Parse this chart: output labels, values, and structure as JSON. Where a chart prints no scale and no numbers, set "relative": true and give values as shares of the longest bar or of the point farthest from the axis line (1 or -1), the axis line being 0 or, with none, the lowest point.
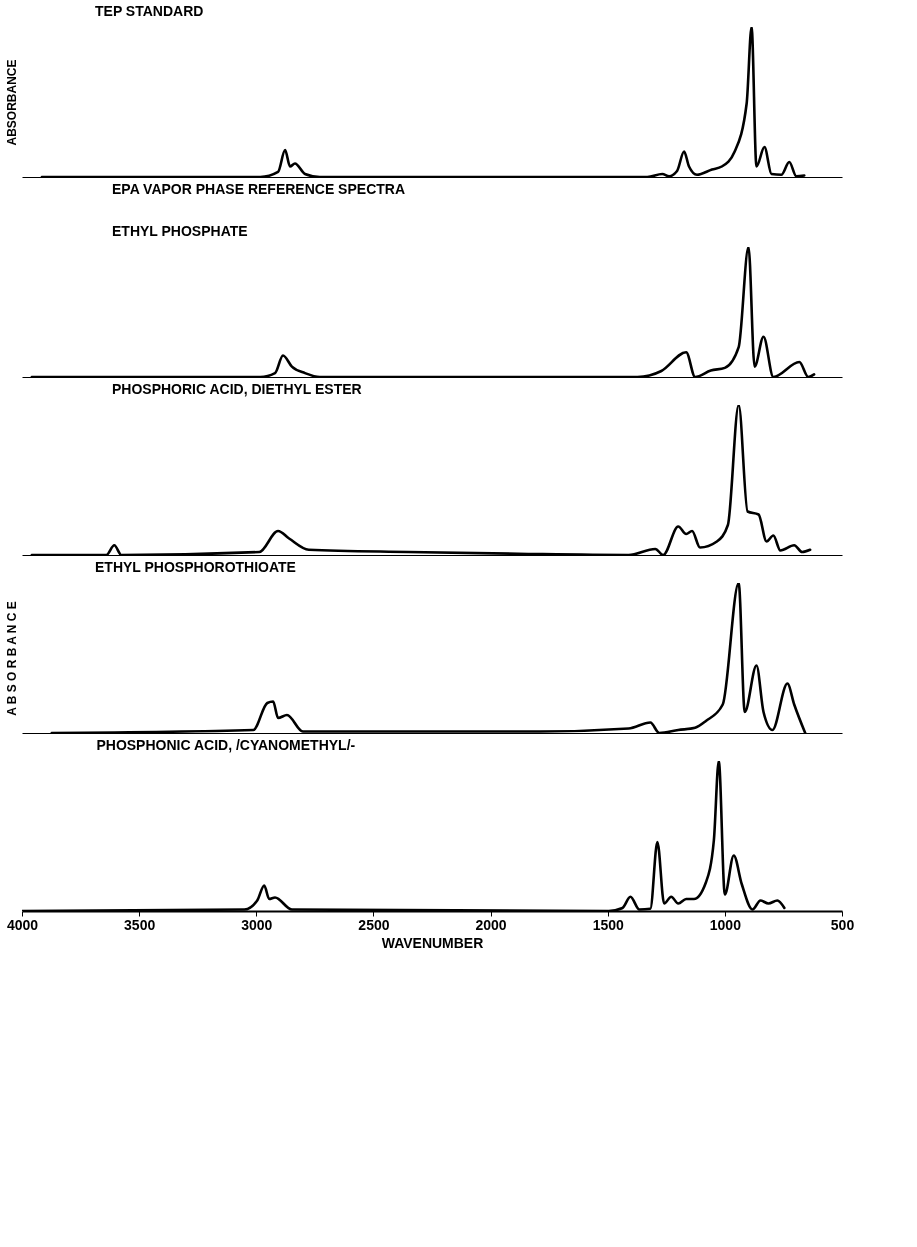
{
  "chart_data": [
    {
      "type": "line",
      "title": "TEP STANDARD",
      "ylabel": "ABSORBANCE",
      "relative": true,
      "xlim": [
        4000,
        500
      ],
      "tick_labels": false,
      "x": [
        3915,
        2983,
        2907,
        2877,
        2856,
        2835,
        2792,
        2729,
        1331,
        1267,
        1238,
        1204,
        1174,
        1153,
        1119,
        1055,
        1013,
        958,
        907,
        886,
        865,
        831,
        801,
        759,
        725,
        695,
        661
      ],
      "series": [
        {
          "color": "#000000",
          "values": [
            0,
            0,
            0.034,
            0.18,
            0.07,
            0.09,
            0.02,
            0,
            0,
            0.02,
            0.005,
            0.04,
            0.17,
            0.07,
            0.015,
            0.05,
            0.07,
            0.17,
            0.49,
            1,
            0.07,
            0.2,
            0.02,
            0.015,
            0.1,
            0.005,
            0.01
          ]
        }
      ]
    },
    {
      "type": "line",
      "title": "EPA VAPOR PHASE REFERENCE SPECTRA",
      "subtitle": "ETHYL PHOSPHATE",
      "relative": true,
      "xlim": [
        4000,
        500
      ],
      "tick_labels": false,
      "x": [
        3958,
        2983,
        2920,
        2886,
        2848,
        2792,
        2729,
        1373,
        1271,
        1165,
        1127,
        1060,
        1000,
        941,
        899,
        873,
        835,
        793,
        682,
        644,
        619
      ],
      "series": [
        {
          "color": "#000000",
          "values": [
            0,
            0,
            0.03,
            0.165,
            0.08,
            0.03,
            0,
            0,
            0.046,
            0.19,
            0,
            0.05,
            0.07,
            0.23,
            1,
            0.08,
            0.31,
            0,
            0.115,
            0,
            0.02
          ]
        }
      ]
    },
    {
      "type": "line",
      "title": "PHOSPHORIC ACID, DIETHYL ESTER",
      "relative": true,
      "xlim": [
        4000,
        500
      ],
      "tick_labels": false,
      "x": [
        3958,
        3640,
        3606,
        3576,
        2987,
        2907,
        2860,
        2776,
        2352,
        1882,
        1411,
        1297,
        1263,
        1199,
        1165,
        1140,
        1106,
        1034,
        987,
        941,
        903,
        856,
        822,
        793,
        763,
        704,
        670,
        636
      ],
      "series": [
        {
          "color": "#000000",
          "values": [
            0,
            0,
            0.065,
            0,
            0.02,
            0.16,
            0.11,
            0.035,
            0.02,
            0.008,
            0,
            0.04,
            0,
            0.19,
            0.14,
            0.16,
            0.05,
            0.09,
            0.2,
            1,
            0.29,
            0.27,
            0.09,
            0.13,
            0.03,
            0.065,
            0.02,
            0.035
          ]
        }
      ]
    },
    {
      "type": "line",
      "title": "ETHYL PHOSPHOROTHIOATE",
      "ylabel": "A B S O R B A N C E",
      "relative": true,
      "xlim": [
        4000,
        500
      ],
      "tick_labels": false,
      "x": [
        3873,
        3013,
        2953,
        2928,
        2907,
        2869,
        2801,
        1788,
        1411,
        1318,
        1280,
        1199,
        1127,
        1081,
        1009,
        941,
        915,
        865,
        835,
        797,
        733,
        704,
        657
      ],
      "series": [
        {
          "color": "#000000",
          "values": [
            0,
            0.02,
            0.2,
            0.21,
            0.1,
            0.12,
            0.01,
            0.01,
            0.03,
            0.07,
            0,
            0.02,
            0.035,
            0.08,
            0.19,
            1,
            0.14,
            0.45,
            0.14,
            0.02,
            0.33,
            0.19,
            0
          ]
        }
      ]
    },
    {
      "type": "line",
      "title": "PHOSPHONIC ACID, /CYANOMETHYL/-",
      "xlabel": "WAVENUMBER",
      "relative": true,
      "xlim": [
        4000,
        500
      ],
      "xticks": [
        4000,
        3500,
        3000,
        2500,
        2000,
        1500,
        1000,
        500
      ],
      "tick_labels": "x",
      "x": [
        4000,
        3051,
        2996,
        2966,
        2945,
        2920,
        2848,
        1496,
        1437,
        1403,
        1365,
        1318,
        1288,
        1259,
        1229,
        1199,
        1165,
        1132,
        1081,
        1047,
        1026,
        1000,
        962,
        928,
        882,
        848,
        814,
        776,
        746
      ],
      "series": [
        {
          "color": "#000000",
          "values": [
            0,
            0.01,
            0.07,
            0.17,
            0.08,
            0.09,
            0.01,
            0,
            0.02,
            0.095,
            0.01,
            0.015,
            0.46,
            0.05,
            0.095,
            0.05,
            0.08,
            0.08,
            0.19,
            0.47,
            1,
            0.11,
            0.37,
            0.18,
            0.01,
            0.07,
            0.05,
            0.07,
            0.02
          ]
        }
      ]
    }
  ]
}
